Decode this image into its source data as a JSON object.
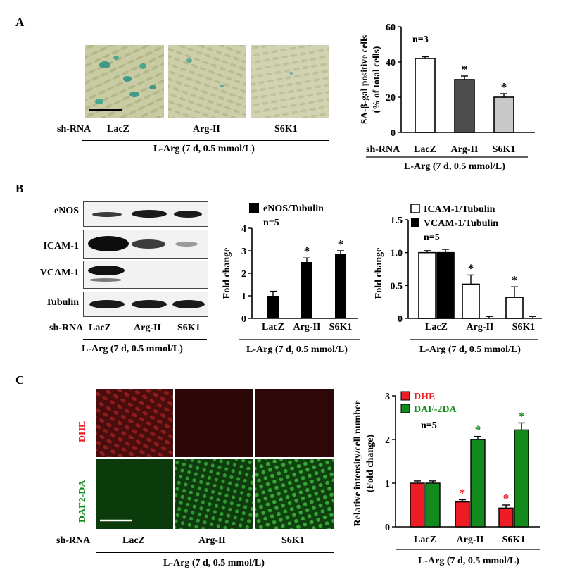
{
  "panels": {
    "a": "A",
    "b": "B",
    "c": "C"
  },
  "shrna_label": "sh-RNA",
  "groups": [
    "LacZ",
    "Arg-II",
    "S6K1"
  ],
  "treatment": "L-Arg (7 d, 0.5 mmol/L)",
  "blot_labels": [
    "eNOS",
    "ICAM-1",
    "VCAM-1",
    "Tubulin"
  ],
  "fluor_labels": [
    "DHE",
    "DAF2-DA"
  ],
  "colors": {
    "dhe_red": "#ee1c24",
    "daf_green": "#138a1c",
    "dark_gray": "#4d4d4d",
    "light_gray": "#c8c8c8",
    "white": "#ffffff",
    "black": "#000000"
  },
  "chart_data": [
    {
      "id": "A",
      "type": "bar",
      "ylabel": "SA-β-gal positive cells (% of total cells)",
      "ylabel_lines": [
        "SA-β-gal positive cells",
        "(% of total cells)"
      ],
      "annotation": "n=3",
      "categories": [
        "LacZ",
        "Arg-II",
        "S6K1"
      ],
      "values": [
        42,
        30,
        20
      ],
      "errors": [
        1,
        2,
        2
      ],
      "significance": [
        "",
        "*",
        "*"
      ],
      "bar_colors": [
        "#ffffff",
        "#4d4d4d",
        "#c8c8c8"
      ],
      "ylim": [
        0,
        60
      ],
      "yticks": [
        0,
        20,
        40,
        60
      ],
      "grid": false
    },
    {
      "id": "B1",
      "type": "bar",
      "ylabel": "Fold change",
      "annotation": "n=5",
      "legend": [
        "eNOS/Tubulin"
      ],
      "legend_position": "top-left",
      "categories": [
        "LacZ",
        "Arg-II",
        "S6K1"
      ],
      "values": [
        1.0,
        2.5,
        2.85
      ],
      "errors": [
        0.2,
        0.18,
        0.15
      ],
      "significance": [
        "",
        "*",
        "*"
      ],
      "ylim": [
        0,
        4
      ],
      "yticks": [
        0,
        1,
        2,
        3,
        4
      ],
      "grid": false
    },
    {
      "id": "B2",
      "type": "bar",
      "ylabel": "Fold change",
      "annotation": "n=5",
      "legend_position": "top-left",
      "categories": [
        "LacZ",
        "Arg-II",
        "S6K1"
      ],
      "series": [
        {
          "name": "ICAM-1/Tubulin",
          "values": [
            1.0,
            0.52,
            0.32
          ],
          "errors": [
            0.03,
            0.14,
            0.16
          ],
          "significance": [
            "",
            "*",
            "*"
          ]
        },
        {
          "name": "VCAM-1/Tubulin",
          "values": [
            1.0,
            0.0,
            0.0
          ],
          "errors": [
            0.05,
            0.03,
            0.03
          ],
          "significance": [
            "",
            "",
            ""
          ]
        }
      ],
      "ylim": [
        0,
        1.5
      ],
      "yticks": [
        "0",
        "0.5",
        "1.0",
        "1.5"
      ],
      "grid": false
    },
    {
      "id": "C",
      "type": "bar",
      "ylabel": "Relative intensity/cell number (Fold change)",
      "ylabel_lines": [
        "Relative intensity/cell number",
        "(Fold change)"
      ],
      "annotation": "n=5",
      "legend_position": "top-left",
      "categories": [
        "LacZ",
        "Arg-II",
        "S6K1"
      ],
      "series": [
        {
          "name": "DHE",
          "values": [
            1.0,
            0.57,
            0.43
          ],
          "errors": [
            0.05,
            0.05,
            0.07
          ],
          "significance": [
            "",
            "*",
            "*"
          ]
        },
        {
          "name": "DAF-2DA",
          "values": [
            1.0,
            2.0,
            2.22
          ],
          "errors": [
            0.05,
            0.07,
            0.16
          ],
          "significance": [
            "",
            "*",
            "*"
          ]
        }
      ],
      "ylim": [
        0,
        3
      ],
      "yticks": [
        0,
        1,
        2,
        3
      ],
      "grid": false
    }
  ]
}
